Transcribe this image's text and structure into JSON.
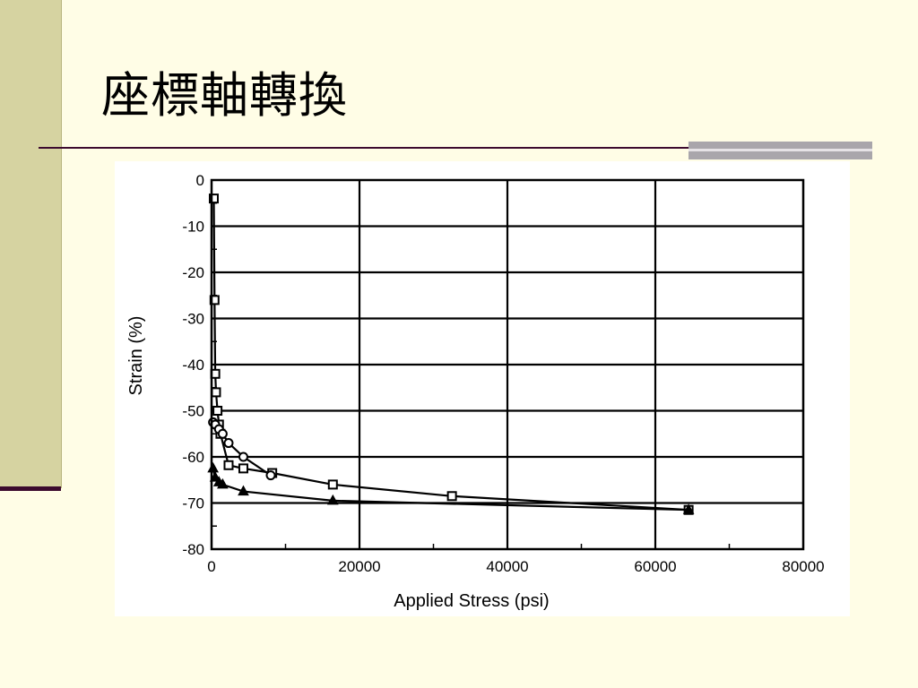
{
  "slide": {
    "title": "座標軸轉換",
    "colors": {
      "background": "#fffde6",
      "left_band": "#d6d3a1",
      "rule": "#3c0a2e",
      "accent_bar": "#a9a6ab"
    }
  },
  "chart_data": {
    "type": "line",
    "xlabel": "Applied Stress  (psi)",
    "ylabel": "Strain  (%)",
    "xlim": [
      0,
      80000
    ],
    "ylim": [
      -80,
      0
    ],
    "xticks": [
      0,
      20000,
      40000,
      60000,
      80000
    ],
    "yticks": [
      0,
      -10,
      -20,
      -30,
      -40,
      -50,
      -60,
      -70,
      -80
    ],
    "grid": true,
    "series": [
      {
        "marker": "square",
        "x": [
          300,
          400,
          500,
          600,
          800,
          1000,
          1200,
          2300,
          4300,
          8200,
          16400,
          32500,
          64500
        ],
        "y": [
          -4,
          -26,
          -42,
          -46,
          -50,
          -53,
          -55,
          -61.8,
          -62.5,
          -63.5,
          -66,
          -68.5,
          -71.5
        ]
      },
      {
        "marker": "circle",
        "x": [
          200,
          500,
          1000,
          1500,
          2300,
          4300,
          8000
        ],
        "y": [
          -52.5,
          -53,
          -54,
          -55,
          -57,
          -60,
          -64
        ]
      },
      {
        "marker": "triangle",
        "x": [
          200,
          500,
          1000,
          1500,
          4300,
          16400,
          64500
        ],
        "y": [
          -62.5,
          -64.5,
          -65.5,
          -66,
          -67.5,
          -69.5,
          -71.5
        ]
      }
    ]
  }
}
